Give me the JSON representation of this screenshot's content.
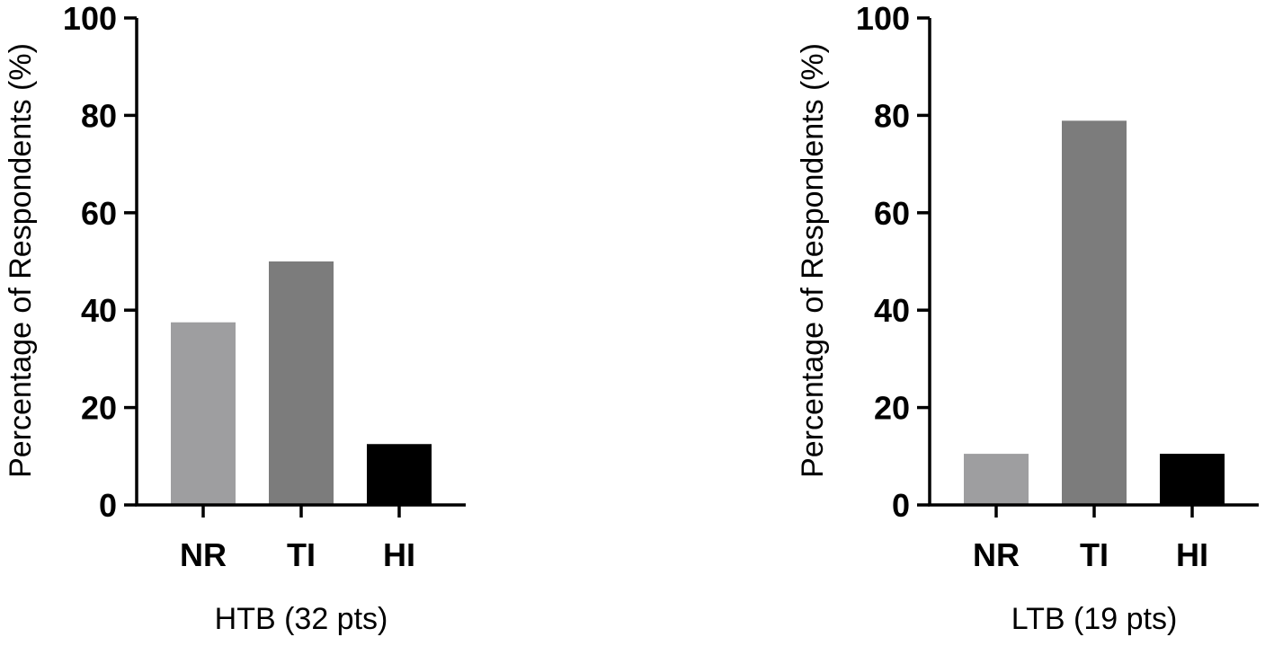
{
  "chart_data": [
    {
      "type": "bar",
      "categories": [
        "NR",
        "TI",
        "HI"
      ],
      "values": [
        37.5,
        50.0,
        12.5
      ],
      "colors": [
        "#9e9ea0",
        "#7c7c7c",
        "#000000"
      ],
      "xlabel": "HTB (32 pts)",
      "ylabel": "Percentage of Respondents (%)",
      "ylim": [
        0,
        100
      ],
      "yticks": [
        0,
        20,
        40,
        60,
        80,
        100
      ],
      "grid": false
    },
    {
      "type": "bar",
      "categories": [
        "NR",
        "TI",
        "HI"
      ],
      "values": [
        10.5,
        78.9,
        10.5
      ],
      "colors": [
        "#9e9ea0",
        "#7c7c7c",
        "#000000"
      ],
      "xlabel": "LTB (19 pts)",
      "ylabel": "Percentage of Respondents (%)",
      "ylim": [
        0,
        100
      ],
      "yticks": [
        0,
        20,
        40,
        60,
        80,
        100
      ],
      "grid": false
    }
  ]
}
